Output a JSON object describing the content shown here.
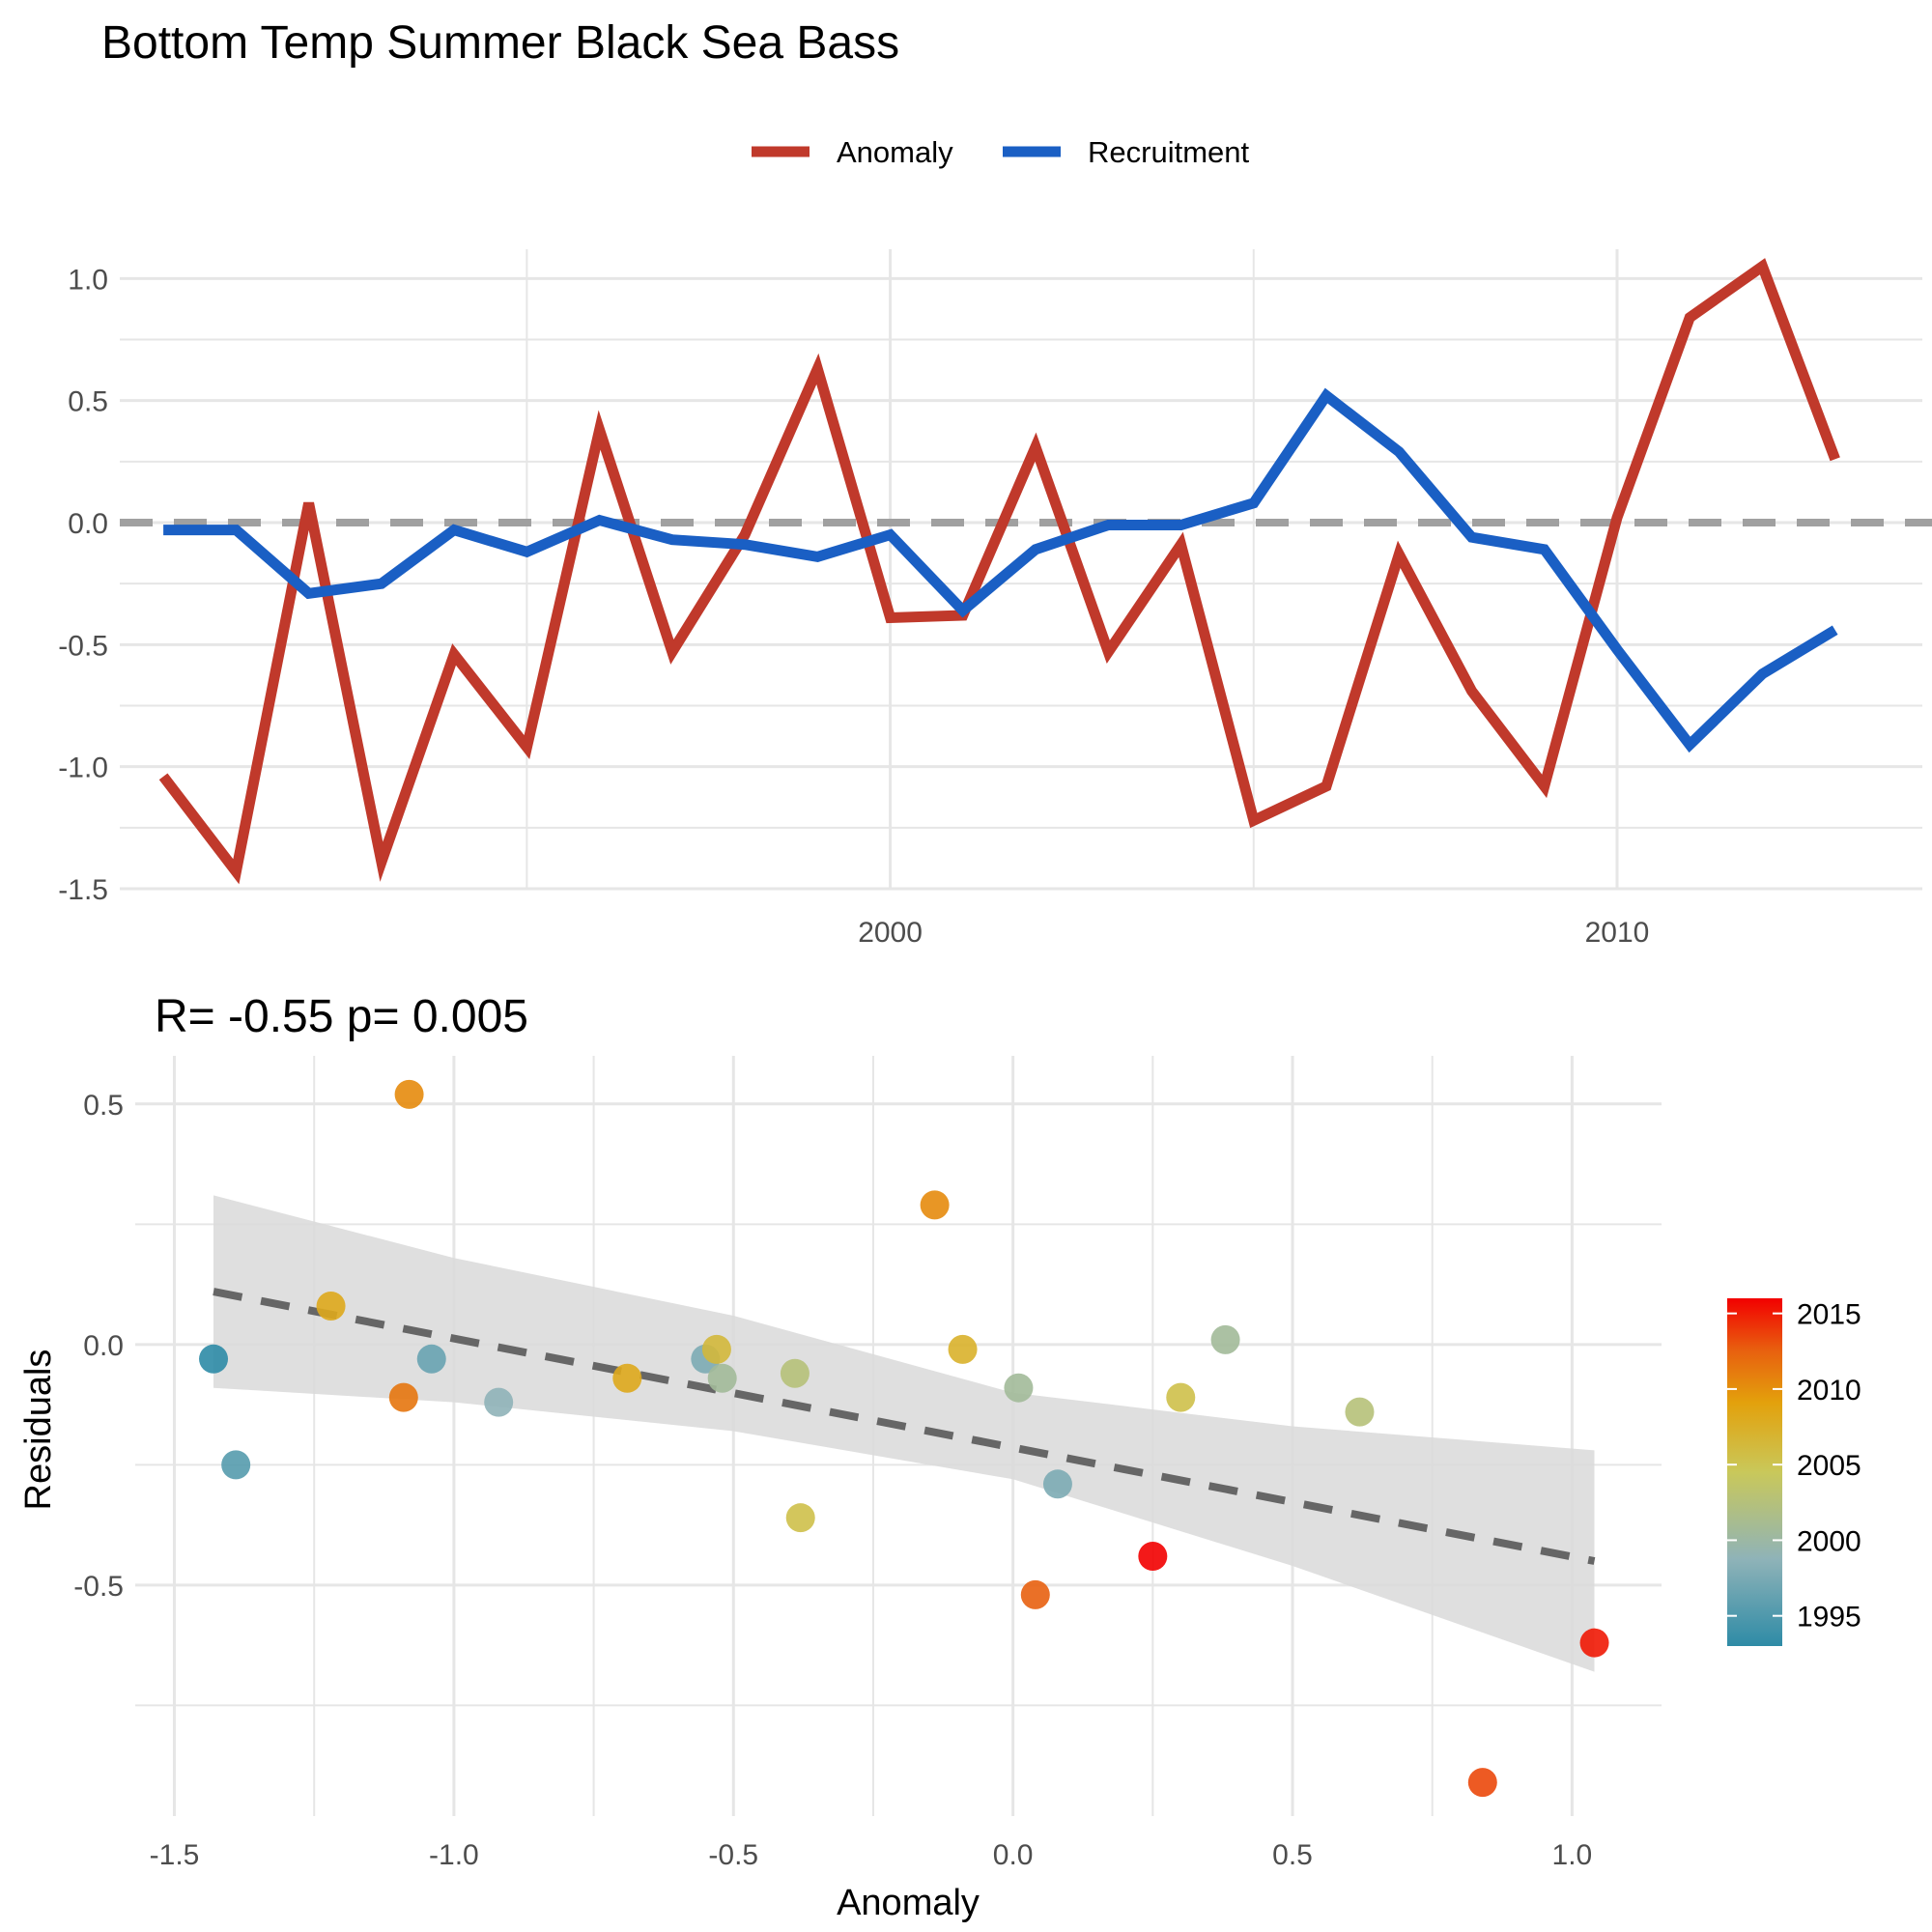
{
  "title": "Bottom Temp Summer Black Sea Bass",
  "colors": {
    "anomaly": "#C0392B",
    "recruitment": "#1A5FC4",
    "zero_line": "#A0A0A0",
    "grid": "#E6E6E6",
    "fit_line": "#666666",
    "ribbon": "#D9D9D9"
  },
  "chart_data": [
    {
      "type": "line",
      "legend": {
        "placement": "top",
        "entries": [
          "Anomaly",
          "Recruitment"
        ]
      },
      "x_ticks": [
        2000,
        2010
      ],
      "y_ticks": [
        -1.5,
        -1.0,
        -0.5,
        0.0,
        0.5,
        1.0
      ],
      "y_tick_labels": [
        "-1.5",
        "-1.0",
        "-0.5",
        "0.0",
        "0.5",
        "1.0"
      ],
      "xlim": [
        1989.4,
        2014.2
      ],
      "ylim": [
        -1.5,
        1.12
      ],
      "grid": true,
      "zero_line": true,
      "series": [
        {
          "name": "Anomaly",
          "x": [
            1990,
            1991,
            1992,
            1993,
            1994,
            1995,
            1996,
            1997,
            1998,
            1999,
            2000,
            2001,
            2002,
            2003,
            2004,
            2005,
            2006,
            2007,
            2008,
            2009,
            2010,
            2011,
            2012,
            2013,
            2014,
            2015
          ],
          "values": [
            -1.04,
            -1.43,
            0.08,
            -1.39,
            -0.54,
            -0.92,
            0.38,
            -0.53,
            -0.05,
            0.63,
            -0.39,
            -0.38,
            0.31,
            -0.53,
            -0.09,
            -1.22,
            -1.08,
            -0.13,
            -0.69,
            -1.08,
            0.02,
            0.84,
            1.05,
            0.26,
            null,
            null
          ]
        },
        {
          "name": "Recruitment",
          "x": [
            1990,
            1991,
            1992,
            1993,
            1994,
            1995,
            1996,
            1997,
            1998,
            1999,
            2000,
            2001,
            2002,
            2003,
            2004,
            2005,
            2006,
            2007,
            2008,
            2009,
            2010,
            2011,
            2012,
            2013,
            2014,
            2015
          ],
          "values": [
            -0.03,
            -0.03,
            -0.29,
            -0.25,
            -0.03,
            -0.12,
            0.01,
            -0.07,
            -0.09,
            -0.14,
            -0.05,
            -0.36,
            -0.11,
            -0.01,
            -0.01,
            0.08,
            0.52,
            0.29,
            -0.06,
            -0.11,
            -0.52,
            -0.91,
            -0.62,
            -0.44,
            null,
            null
          ]
        }
      ]
    },
    {
      "type": "scatter",
      "subtitle": "R= -0.55  p= 0.005",
      "xlabel": "Anomaly",
      "ylabel": "Residuals",
      "x_ticks": [
        -1.5,
        -1.0,
        -0.5,
        0.0,
        0.5,
        1.0
      ],
      "x_tick_labels": [
        "-1.5",
        "-1.0",
        "-0.5",
        "0.0",
        "0.5",
        "1.0"
      ],
      "y_ticks": [
        -0.5,
        0.0,
        0.5
      ],
      "y_tick_labels": [
        "-0.5",
        "0.0",
        "0.5"
      ],
      "xlim": [
        -1.57,
        1.16
      ],
      "ylim": [
        -0.98,
        0.6
      ],
      "grid": true,
      "colorbar": {
        "placement": "right",
        "ticks": [
          1995,
          2000,
          2005,
          2010,
          2015
        ],
        "tick_labels": [
          "2015",
          "2010",
          "2005",
          "2000",
          "1995"
        ],
        "range": [
          1993,
          2016
        ]
      },
      "points": [
        {
          "x": -1.43,
          "y": -0.03,
          "year": 1993
        },
        {
          "x": -1.39,
          "y": -0.25,
          "year": 1995
        },
        {
          "x": -1.22,
          "y": 0.08,
          "year": 2008
        },
        {
          "x": -1.08,
          "y": 0.52,
          "year": 2010
        },
        {
          "x": -1.09,
          "y": -0.11,
          "year": 2011
        },
        {
          "x": -1.04,
          "y": -0.03,
          "year": 1996
        },
        {
          "x": -0.92,
          "y": -0.12,
          "year": 1998
        },
        {
          "x": -0.69,
          "y": -0.07,
          "year": 2008
        },
        {
          "x": -0.55,
          "y": -0.03,
          "year": 1997
        },
        {
          "x": -0.53,
          "y": -0.01,
          "year": 2006
        },
        {
          "x": -0.52,
          "y": -0.07,
          "year": 2000
        },
        {
          "x": -0.39,
          "y": -0.06,
          "year": 2002
        },
        {
          "x": -0.38,
          "y": -0.36,
          "year": 2005
        },
        {
          "x": -0.14,
          "y": 0.29,
          "year": 2010
        },
        {
          "x": -0.09,
          "y": -0.01,
          "year": 2007
        },
        {
          "x": 0.01,
          "y": -0.09,
          "year": 2000
        },
        {
          "x": 0.04,
          "y": -0.52,
          "year": 2012
        },
        {
          "x": 0.08,
          "y": -0.29,
          "year": 1997
        },
        {
          "x": 0.25,
          "y": -0.44,
          "year": 2016
        },
        {
          "x": 0.3,
          "y": -0.11,
          "year": 2005
        },
        {
          "x": 0.38,
          "y": 0.01,
          "year": 2000
        },
        {
          "x": 0.62,
          "y": -0.14,
          "year": 2002
        },
        {
          "x": 0.84,
          "y": -0.91,
          "year": 2013
        },
        {
          "x": 1.04,
          "y": -0.62,
          "year": 2015
        }
      ],
      "fit": {
        "x": [
          -1.43,
          1.04
        ],
        "y": [
          0.11,
          -0.45
        ],
        "band_x": [
          -1.43,
          -1.0,
          -0.5,
          0.0,
          0.5,
          1.04
        ],
        "band_lower": [
          -0.09,
          -0.12,
          -0.18,
          -0.28,
          -0.46,
          -0.68
        ],
        "band_upper": [
          0.31,
          0.18,
          0.06,
          -0.1,
          -0.17,
          -0.22
        ]
      }
    }
  ]
}
